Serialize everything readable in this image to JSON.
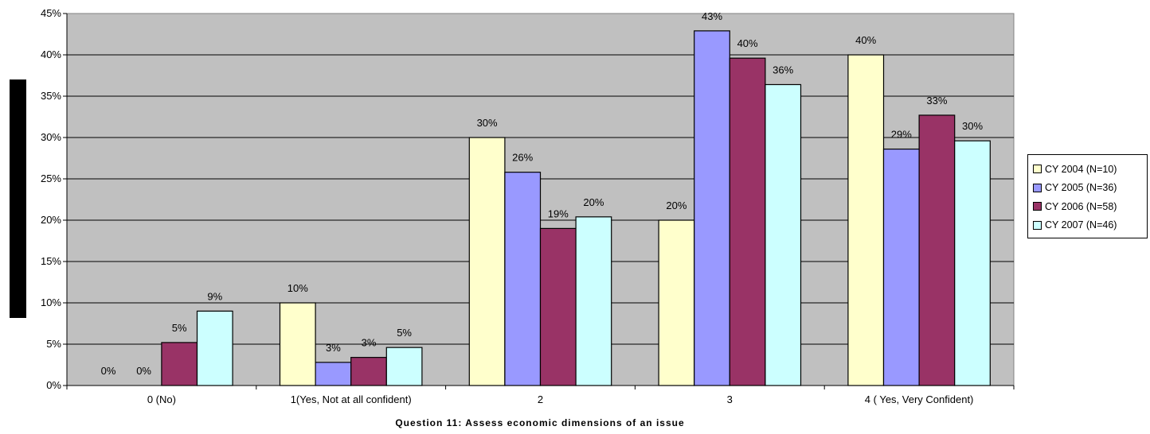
{
  "chart_data": {
    "type": "bar",
    "title": "",
    "xlabel": "Question 11: Assess economic dimensions of an issue",
    "ylabel": "",
    "ylim": [
      0,
      45
    ],
    "yticks": [
      "0%",
      "5%",
      "10%",
      "15%",
      "20%",
      "25%",
      "30%",
      "35%",
      "40%",
      "45%"
    ],
    "grid": true,
    "legend_position": "right",
    "categories": [
      "0 (No)",
      "1(Yes, Not at all confident)",
      "2",
      "3",
      "4 ( Yes, Very Confident)"
    ],
    "series": [
      {
        "name": "CY 2004 (N=10)",
        "color": "#ffffcc",
        "values": [
          0,
          10,
          30,
          20,
          40
        ],
        "labels": [
          "0%",
          "10%",
          "30%",
          "20%",
          "40%"
        ]
      },
      {
        "name": "CY 2005 (N=36)",
        "color": "#9999ff",
        "values": [
          0,
          2.8,
          25.8,
          42.9,
          28.6
        ],
        "labels": [
          "0%",
          "3%",
          "26%",
          "43%",
          "29%"
        ]
      },
      {
        "name": "CY 2006 (N=58)",
        "color": "#993366",
        "values": [
          5.2,
          3.4,
          19,
          39.6,
          32.7
        ],
        "labels": [
          "5%",
          "3%",
          "19%",
          "40%",
          "33%"
        ]
      },
      {
        "name": "CY 2007 (N=46)",
        "color": "#ccffff",
        "values": [
          9,
          4.6,
          20.4,
          36.4,
          29.6
        ],
        "labels": [
          "9%",
          "5%",
          "20%",
          "36%",
          "30%"
        ]
      }
    ]
  }
}
